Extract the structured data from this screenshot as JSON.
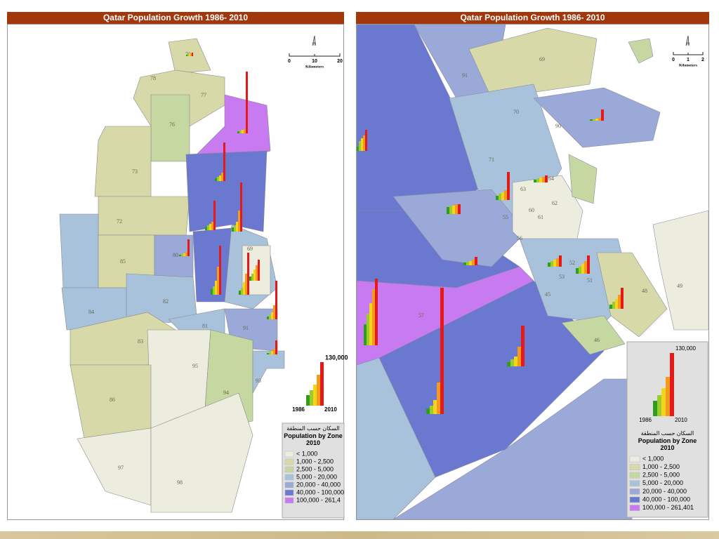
{
  "panels": [
    {
      "title": "Qatar Population Growth 1986- 2010",
      "north": "N",
      "scale": {
        "ticks": [
          "0",
          "10",
          "20"
        ],
        "unit": "Kilometers"
      },
      "zones": [
        "70",
        "78",
        "77",
        "76",
        "73",
        "72",
        "85",
        "80",
        "84",
        "82",
        "81",
        "83",
        "86",
        "95",
        "94",
        "93",
        "97",
        "98",
        "69",
        "91"
      ],
      "bar_key": {
        "max": "130,000",
        "start": "1986",
        "end": "2010"
      },
      "legend": {
        "title_ar": "السكان حسب المنطقة",
        "title": "Population by Zone 2010",
        "classes": [
          {
            "label": "< 1,000",
            "color": "#ecedde"
          },
          {
            "label": "1,000 - 2,500",
            "color": "#d8d9a8"
          },
          {
            "label": "2,500 - 5,000",
            "color": "#c6d8a2"
          },
          {
            "label": "5,000 - 20,000",
            "color": "#a8c2dc"
          },
          {
            "label": "20,000 - 40,000",
            "color": "#9aa9d8"
          },
          {
            "label": "40,000 - 100,000",
            "color": "#6b78d0"
          },
          {
            "label": "100,000 - 261,4",
            "color": "#c87af0"
          }
        ]
      }
    },
    {
      "title": "Qatar Population Growth 1986- 2010",
      "north": "N",
      "scale": {
        "ticks": [
          "0",
          "1",
          "2"
        ],
        "unit": "Kilometers"
      },
      "zones": [
        "69",
        "91",
        "90",
        "70",
        "71",
        "63",
        "64",
        "60",
        "62",
        "61",
        "55",
        "56",
        "48",
        "49",
        "57",
        "45",
        "46",
        "52",
        "51",
        "53"
      ],
      "bar_key": {
        "max": "130,000",
        "start": "1986",
        "end": "2010"
      },
      "legend": {
        "title_ar": "السكان حسب المنطقة",
        "title": "Population by Zone 2010",
        "classes": [
          {
            "label": "< 1,000",
            "color": "#ecedde"
          },
          {
            "label": "1,000 - 2,500",
            "color": "#d8d9a8"
          },
          {
            "label": "2,500 - 5,000",
            "color": "#c6d8a2"
          },
          {
            "label": "5,000 - 20,000",
            "color": "#a8c2dc"
          },
          {
            "label": "20,000 - 40,000",
            "color": "#9aa9d8"
          },
          {
            "label": "40,000 - 100,000",
            "color": "#6b78d0"
          },
          {
            "label": "100,000 - 261,401",
            "color": "#c87af0"
          }
        ]
      }
    }
  ]
}
